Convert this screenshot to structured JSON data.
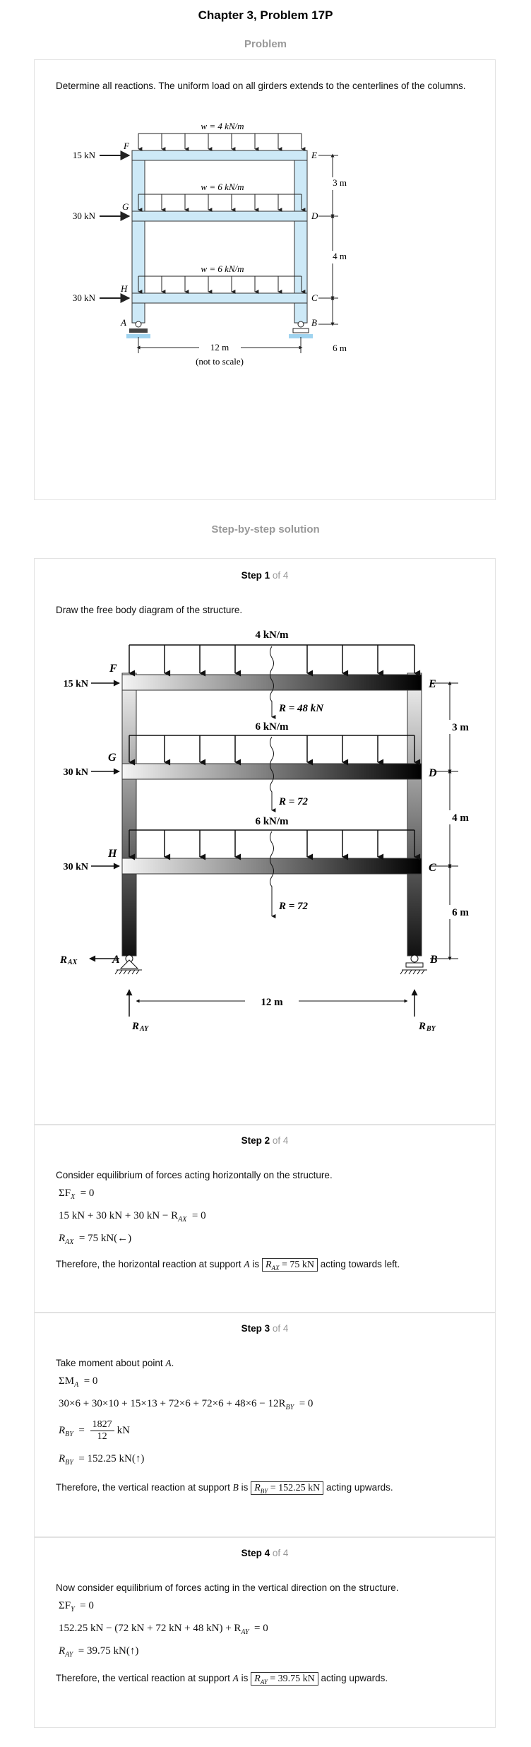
{
  "page_title": "Chapter 3, Problem 17P",
  "problem": {
    "heading": "Problem",
    "statement": "Determine all reactions. The uniform load on all girders extends to the centerlines of the columns.",
    "figure": {
      "loads_top": "w = 4 kN/m",
      "loads_mid": "w = 6 kN/m",
      "loads_low": "w = 6 kN/m",
      "forces": [
        "15 kN",
        "30 kN",
        "30 kN"
      ],
      "nodes": [
        "F",
        "G",
        "H",
        "A",
        "E",
        "D",
        "C",
        "B"
      ],
      "dims": [
        "3 m",
        "4 m",
        "6 m"
      ],
      "span": "12 m",
      "note": "(not to scale)"
    }
  },
  "solution_heading": "Step-by-step solution",
  "steps": [
    {
      "num": "Step 1",
      "of": "of 4",
      "text": "Draw the free body diagram of the structure.",
      "figure": {
        "load1": "4 kN/m",
        "load2": "6 kN/m",
        "load3": "6 kN/m",
        "r1": "R = 48 kN",
        "r2": "R = 72",
        "r3": "R = 72",
        "forces": [
          "15 kN",
          "30 kN",
          "30 kN"
        ],
        "nodes": [
          "F",
          "G",
          "H",
          "A",
          "E",
          "D",
          "C",
          "B"
        ],
        "dims": [
          "3 m",
          "4 m",
          "6 m"
        ],
        "span": "12 m",
        "reactions": [
          "R",
          "AX",
          "R",
          "AY",
          "R",
          "BY"
        ]
      }
    },
    {
      "num": "Step 2",
      "of": "of 4",
      "text": "Consider equilibrium of forces acting horizontally on the structure.",
      "eq1": "ΣF",
      "eq1_sub": "X",
      "eq1_rhs": "= 0",
      "eq2": "15 kN + 30 kN + 30 kN − R",
      "eq2_sub": "AX",
      "eq2_rhs": "= 0",
      "eq3": "R",
      "eq3_sub": "AX",
      "eq3_rhs": "= 75 kN(←)",
      "conc_pre": "Therefore, the horizontal reaction at support",
      "conc_var": "A",
      "conc_is": "is",
      "conc_box": "R",
      "conc_box_sub": "AX",
      "conc_box_rhs": "= 75 kN",
      "conc_post": "acting towards left."
    },
    {
      "num": "Step 3",
      "of": "of 4",
      "text": "Take moment about point",
      "text_var": "A",
      "eq1": "ΣM",
      "eq1_sub": "A",
      "eq1_rhs": "= 0",
      "eq2": "30×6 + 30×10 + 15×13 + 72×6 + 72×6 + 48×6 − 12R",
      "eq2_sub": "BY",
      "eq2_rhs": "= 0",
      "eq3": "R",
      "eq3_sub": "BY",
      "eq3_num": "1827",
      "eq3_den": "12",
      "eq3_unit": "kN",
      "eq4": "R",
      "eq4_sub": "BY",
      "eq4_rhs": "= 152.25 kN(↑)",
      "conc_pre": "Therefore, the vertical reaction at support",
      "conc_var": "B",
      "conc_is": "is",
      "conc_box": "R",
      "conc_box_sub": "BY",
      "conc_box_rhs": "= 152.25 kN",
      "conc_post": "acting upwards."
    },
    {
      "num": "Step 4",
      "of": "of 4",
      "text": "Now consider equilibrium of forces acting in the vertical direction on the structure.",
      "eq1": "ΣF",
      "eq1_sub": "Y",
      "eq1_rhs": "= 0",
      "eq2": "152.25 kN − (72 kN + 72 kN + 48 kN) + R",
      "eq2_sub": "AY",
      "eq2_rhs": "= 0",
      "eq3": "R",
      "eq3_sub": "AY",
      "eq3_rhs": "= 39.75 kN(↑)",
      "conc_pre": "Therefore, the vertical reaction at support",
      "conc_var": "A",
      "conc_is": "is",
      "conc_box": "R",
      "conc_box_sub": "AY",
      "conc_box_rhs": "= 39.75 kN",
      "conc_post": "acting upwards."
    }
  ],
  "colors": {
    "frame_fill": "#cde9f7",
    "frame_stroke": "#333333",
    "muted": "#999999"
  }
}
